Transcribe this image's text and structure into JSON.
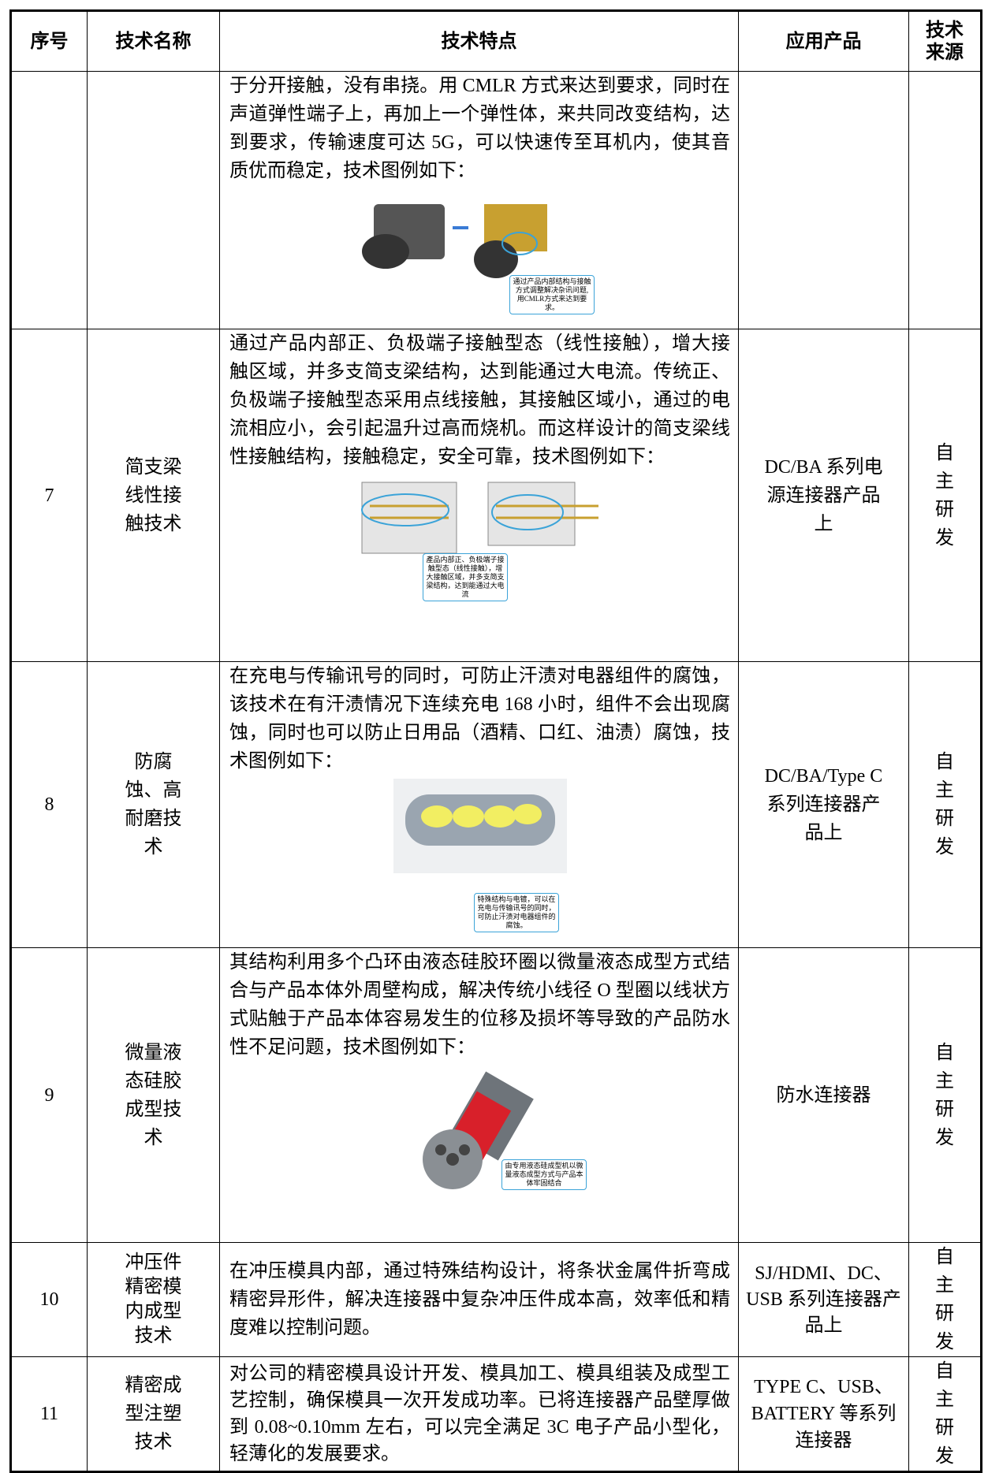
{
  "table": {
    "header": [
      "序号",
      "技术名称",
      "技术特点",
      "应用产品",
      "技术来源"
    ],
    "rows": [
      {
        "feature": "于分开接触，没有串挠。用 CMLR 方式来达到要求，同时在声道弹性端子上，再加上一个弹性体，来共同改变结构，达到要求，传输速度可达 5G，可以快速传至耳机内，使其音质优而稳定，技术图例如下：",
        "figure_note": "通过产品内部结构与接触方式调整解决杂讯问题,用CMLR方式来达到要求。"
      },
      {
        "no": "7",
        "name": "简支梁线性接触技术",
        "feature": "通过产品内部正、负极端子接触型态（线性接触），增大接触区域，并多支简支梁结构，达到能通过大电流。传统正、负极端子接触型态采用点线接触，其接触区域小，通过的电流相应小，会引起温升过高而烧机。而这样设计的简支梁线性接触结构，接触稳定，安全可靠，技术图例如下：",
        "figure_note": "產品内部正、负极端子接触型态（线性接触），增大接触区域，并多支简支梁结构，达到能通过大电流",
        "product": "DC/BA 系列电源连接器产品上",
        "source": "自主研发"
      },
      {
        "no": "8",
        "name": "防腐蚀、高耐磨技术",
        "feature": "在充电与传输讯号的同时，可防止汗渍对电器组件的腐蚀，该技术在有汗渍情况下连续充电 168 小时，组件不会出现腐蚀，同时也可以防止日用品（酒精、口红、油渍）腐蚀，技术图例如下：",
        "figure_note": "特殊结构与电镀，可以在充电与传输讯号的同时，可防止汗渍对电器组件的腐蚀。",
        "product": "DC/BA/Type C 系列连接器产品上",
        "source": "自主研发"
      },
      {
        "no": "9",
        "name": "微量液态硅胶成型技术",
        "feature": "其结构利用多个凸环由液态硅胶环圈以微量液态成型方式结合与产品本体外周壁构成，解决传统小线径 O 型圈以线状方式贴触于产品本体容易发生的位移及损坏等导致的产品防水性不足问题，技术图例如下：",
        "figure_note": "由专用液态硅成型机以微量液态成型方式与产品本体牢固结合",
        "product": "防水连接器",
        "source": "自主研发"
      },
      {
        "no": "10",
        "name": "冲压件精密模内成型技术",
        "feature": "在冲压模具内部，通过特殊结构设计，将条状金属件折弯成精密异形件，解决连接器中复杂冲压件成本高，效率低和精度难以控制问题。",
        "product": "SJ/HDMI、DC、USB 系列连接器产品上",
        "source": "自主研发"
      },
      {
        "no": "11",
        "name": "精密成型注塑技术",
        "feature": "对公司的精密模具设计开发、模具加工、模具组装及成型工艺控制，确保模具一次开发成功率。已将连接器产品壁厚做到 0.08~0.10mm 左右，可以完全满足 3C 电子产品小型化，轻薄化的发展要求。",
        "product": "TYPE C、USB、BATTERY 等系列连接器",
        "source": "自主研发"
      }
    ]
  }
}
